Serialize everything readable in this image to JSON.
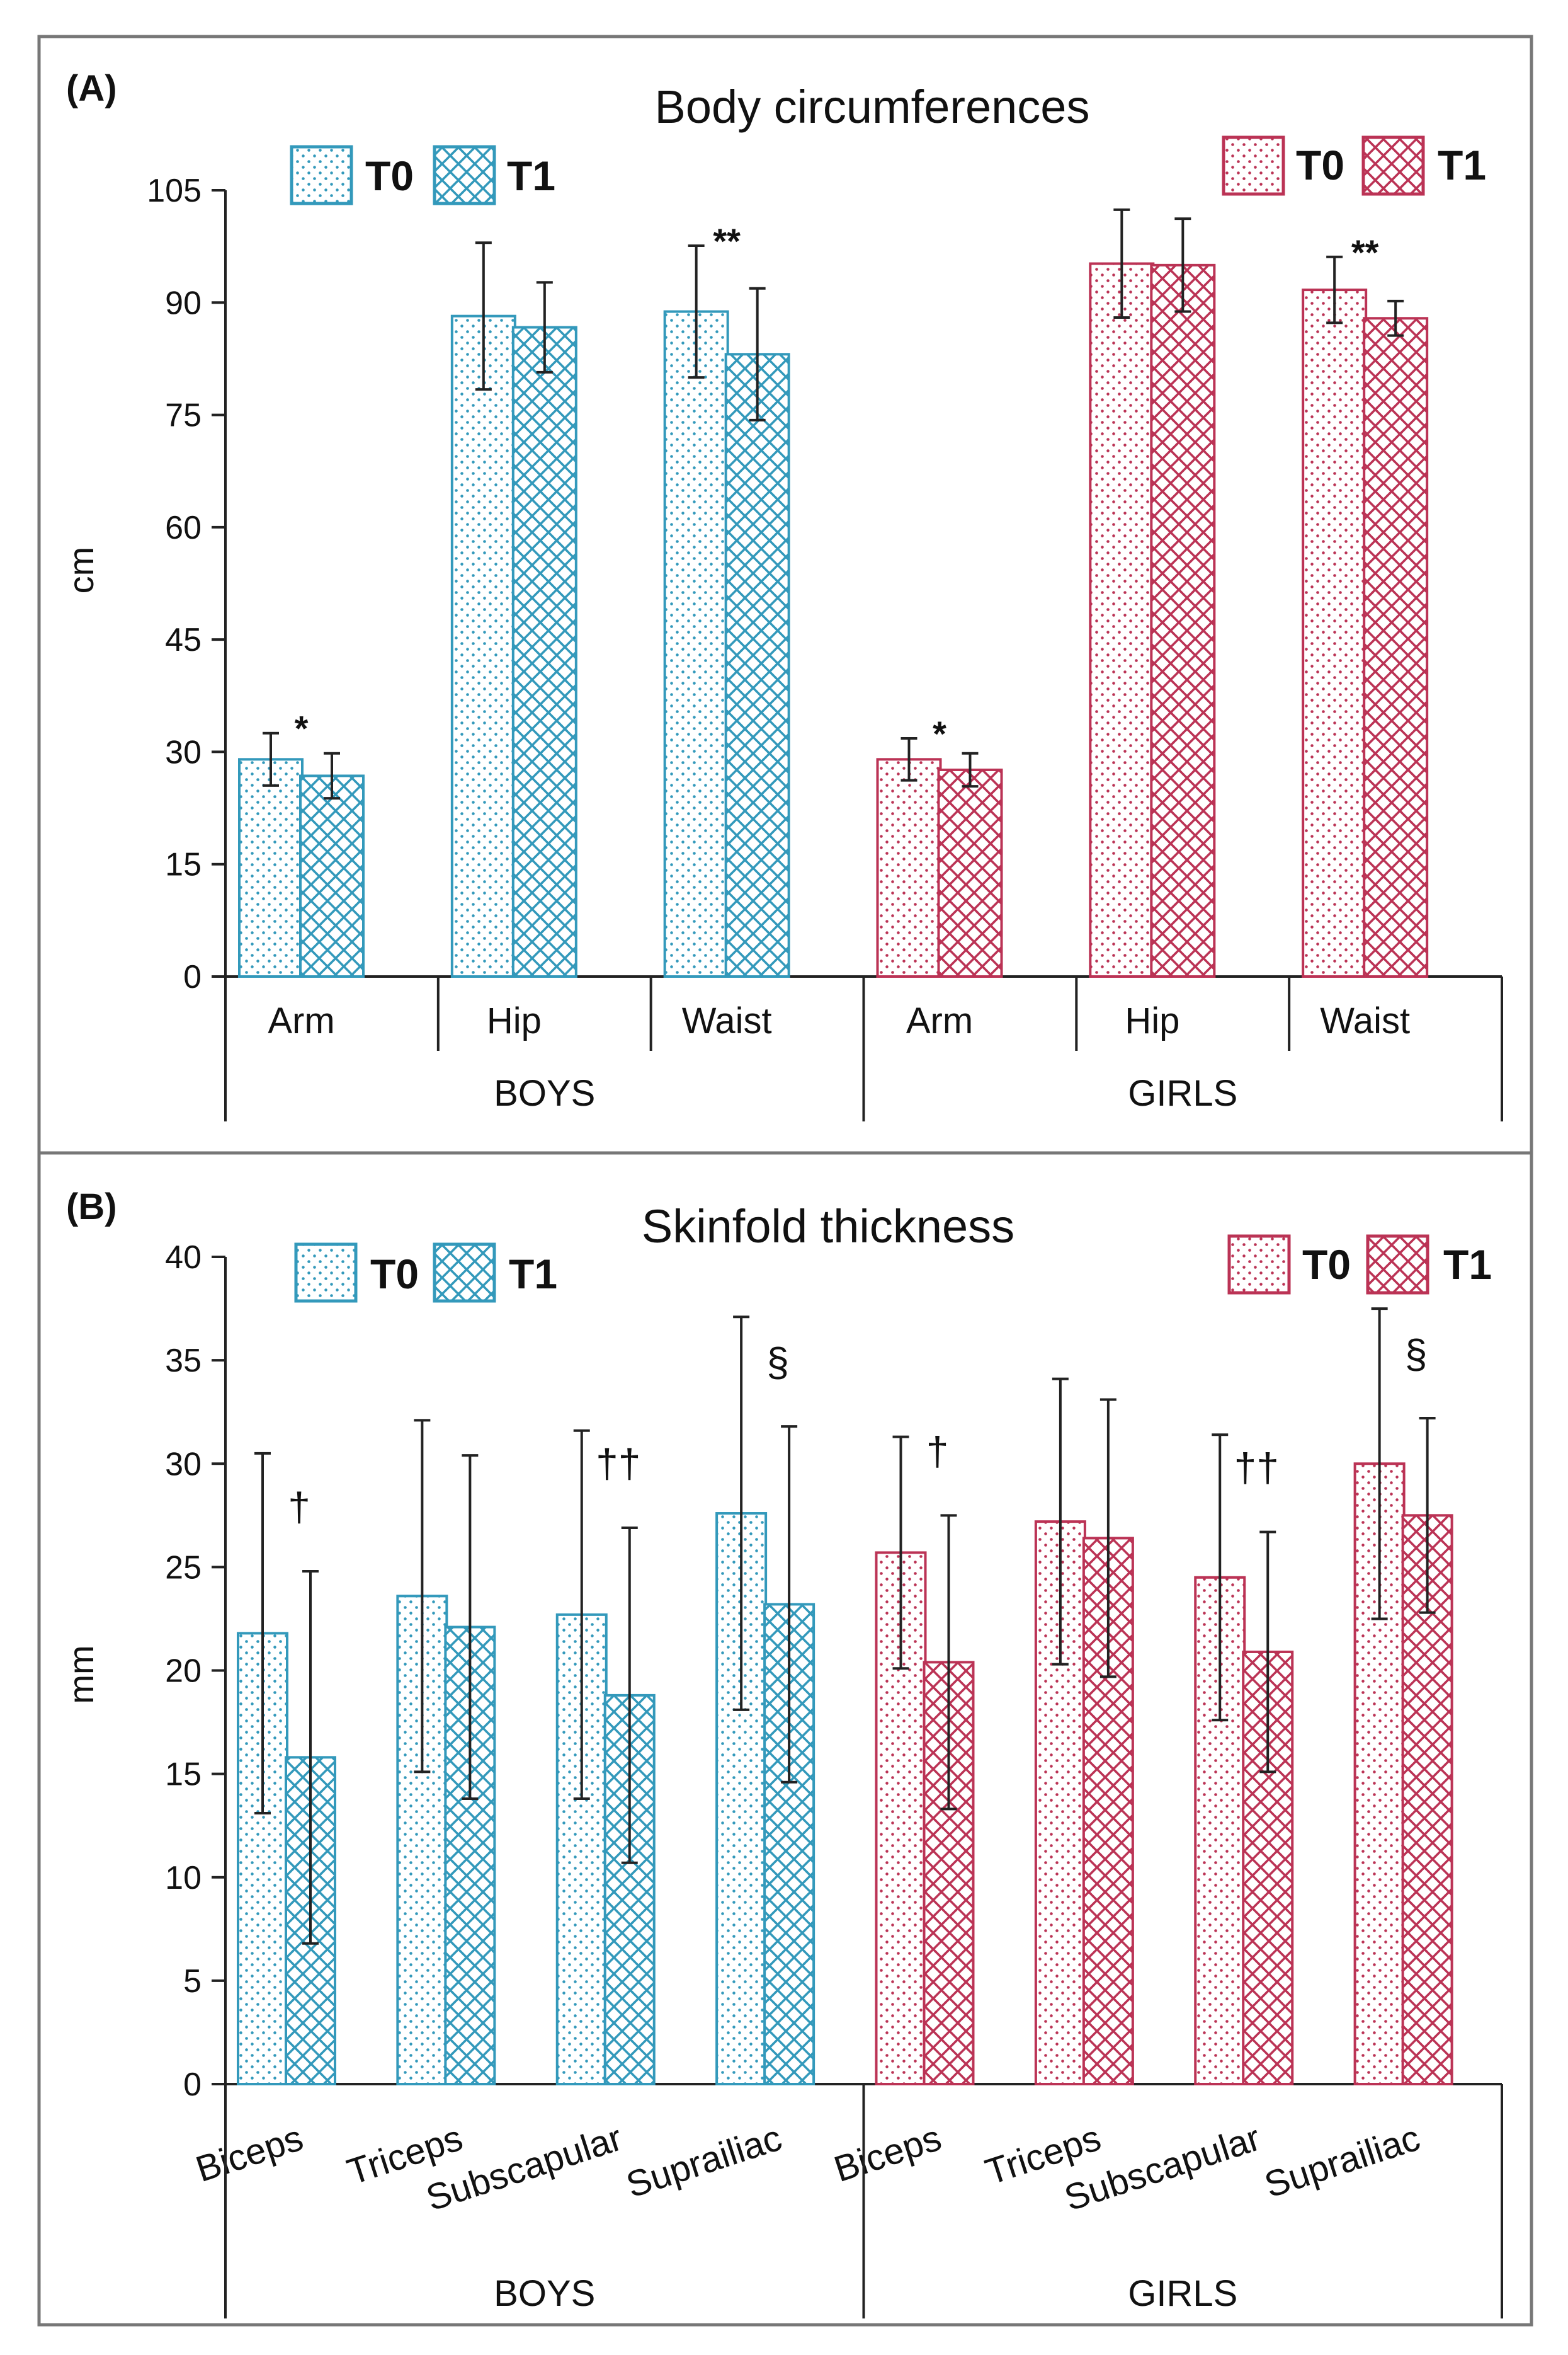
{
  "colors": {
    "boys": "#3399bb",
    "girls": "#bb3355",
    "axis": "#222222"
  },
  "chart_data": [
    {
      "type": "bar",
      "panel_label": "(A)",
      "title": "Body circumferences",
      "ylabel": "cm",
      "ylim": [
        0,
        105
      ],
      "yticks": [
        0,
        15,
        30,
        45,
        60,
        75,
        90,
        105
      ],
      "legend_labels": [
        "T0",
        "T1"
      ],
      "groups": [
        {
          "name": "BOYS",
          "color_key": "boys",
          "categories": [
            {
              "label": "Arm",
              "t0": 29,
              "t0_err": 3.5,
              "t1": 26.8,
              "t1_err": 3,
              "annotation": "*"
            },
            {
              "label": "Hip",
              "t0": 88.2,
              "t0_err": 9.8,
              "t1": 86.7,
              "t1_err": 6,
              "annotation": ""
            },
            {
              "label": "Waist",
              "t0": 88.8,
              "t0_err": 8.8,
              "t1": 83.1,
              "t1_err": 8.8,
              "annotation": "**"
            }
          ]
        },
        {
          "name": "GIRLS",
          "color_key": "girls",
          "categories": [
            {
              "label": "Arm",
              "t0": 29,
              "t0_err": 2.8,
              "t1": 27.6,
              "t1_err": 2.2,
              "annotation": "*"
            },
            {
              "label": "Hip",
              "t0": 95.2,
              "t0_err": 7.2,
              "t1": 95,
              "t1_err": 6.2,
              "annotation": ""
            },
            {
              "label": "Waist",
              "t0": 91.7,
              "t0_err": 4.4,
              "t1": 87.9,
              "t1_err": 2.3,
              "annotation": "**"
            }
          ]
        }
      ]
    },
    {
      "type": "bar",
      "panel_label": "(B)",
      "title": "Skinfold thickness",
      "ylabel": "mm",
      "ylim": [
        0,
        40
      ],
      "yticks": [
        0,
        5,
        10,
        15,
        20,
        25,
        30,
        35,
        40
      ],
      "legend_labels": [
        "T0",
        "T1"
      ],
      "groups": [
        {
          "name": "BOYS",
          "color_key": "boys",
          "categories": [
            {
              "label": "Biceps",
              "t0": 21.8,
              "t0_err": 8.7,
              "t1": 15.8,
              "t1_err": 9,
              "annotation": "†"
            },
            {
              "label": "Triceps",
              "t0": 23.6,
              "t0_err": 8.5,
              "t1": 22.1,
              "t1_err": 8.3,
              "annotation": ""
            },
            {
              "label": "Subscapular",
              "t0": 22.7,
              "t0_err": 8.9,
              "t1": 18.8,
              "t1_err": 8.1,
              "annotation": "††"
            },
            {
              "label": "Suprailiac",
              "t0": 27.6,
              "t0_err": 9.5,
              "t1": 23.2,
              "t1_err": 8.6,
              "annotation": "§"
            }
          ]
        },
        {
          "name": "GIRLS",
          "color_key": "girls",
          "categories": [
            {
              "label": "Biceps",
              "t0": 25.7,
              "t0_err": 5.6,
              "t1": 20.4,
              "t1_err": 7.1,
              "annotation": "†"
            },
            {
              "label": "Triceps",
              "t0": 27.2,
              "t0_err": 6.9,
              "t1": 26.4,
              "t1_err": 6.7,
              "annotation": ""
            },
            {
              "label": "Subscapular",
              "t0": 24.5,
              "t0_err": 6.9,
              "t1": 20.9,
              "t1_err": 5.8,
              "annotation": "††"
            },
            {
              "label": "Suprailiac",
              "t0": 30,
              "t0_err": 7.5,
              "t1": 27.5,
              "t1_err": 4.7,
              "annotation": "§"
            }
          ]
        }
      ]
    }
  ]
}
